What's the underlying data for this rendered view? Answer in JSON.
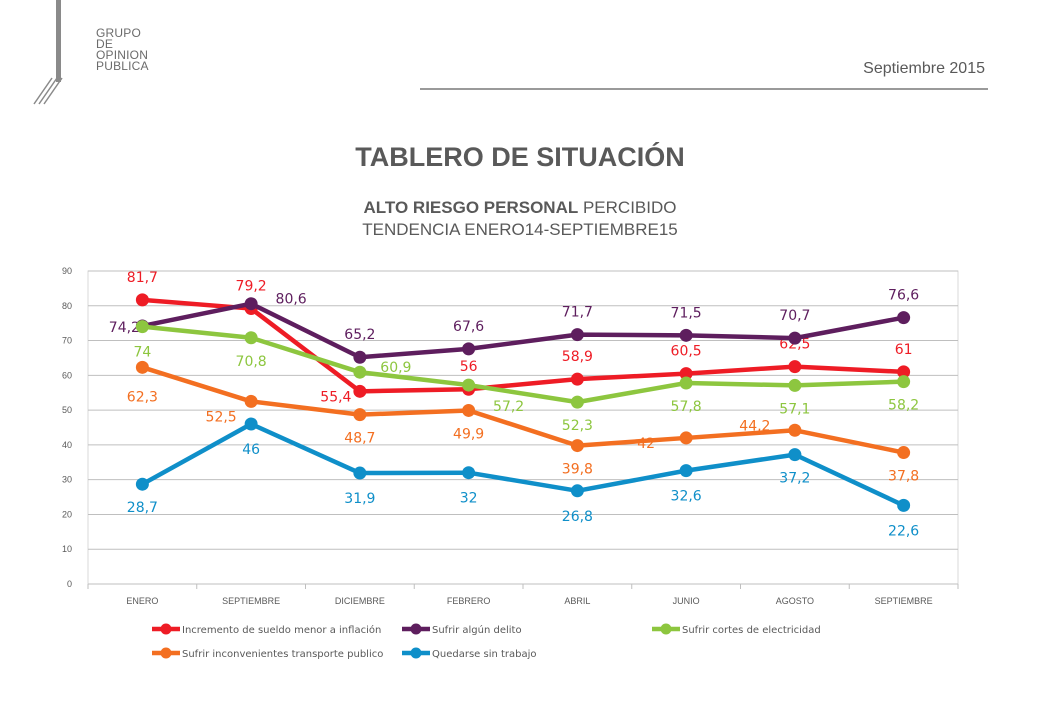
{
  "header": {
    "logo_lines": [
      "GRUPO",
      "DE",
      "OPINION",
      "PUBLICA"
    ],
    "date": "Septiembre 2015"
  },
  "titles": {
    "main": "TABLERO DE SITUACIÓN",
    "subtitle_bold": "ALTO RIESGO PERSONAL",
    "subtitle_rest": " PERCIBIDO",
    "subtitle2": "TENDENCIA ENERO14-SEPTIEMBRE15"
  },
  "chart_data": {
    "type": "line",
    "categories": [
      "ENERO",
      "SEPTIEMBRE",
      "DICIEMBRE",
      "FEBRERO",
      "ABRIL",
      "JUNIO",
      "AGOSTO",
      "SEPTIEMBRE"
    ],
    "ylim": [
      0,
      90
    ],
    "yticks": [
      0,
      10,
      20,
      30,
      40,
      50,
      60,
      70,
      80,
      90
    ],
    "grid": true,
    "legend_position": "bottom",
    "series": [
      {
        "name": "Incremento de sueldo menor a inflación",
        "color": "#ee1c25",
        "values": [
          81.7,
          79.2,
          55.4,
          56,
          58.9,
          60.5,
          62.5,
          61
        ],
        "labels": [
          "81,7",
          "79,2",
          "55,4",
          "56",
          "58,9",
          "60,5",
          "62,5",
          "61"
        ]
      },
      {
        "name": "Sufrir algún delito",
        "color": "#5e1e5e",
        "values": [
          74.2,
          80.6,
          65.2,
          67.6,
          71.7,
          71.5,
          70.7,
          76.6
        ],
        "labels": [
          "74,2",
          "80,6",
          "65,2",
          "67,6",
          "71,7",
          "71,5",
          "70,7",
          "76,6"
        ]
      },
      {
        "name": "Sufrir cortes de electricidad",
        "color": "#8dc63f",
        "values": [
          74,
          70.8,
          60.9,
          57.2,
          52.3,
          57.8,
          57.1,
          58.2
        ],
        "labels": [
          "74",
          "70,8",
          "60,9",
          "57,2",
          "52,3",
          "57,8",
          "57,1",
          "58,2"
        ]
      },
      {
        "name": "Sufrir inconvenientes transporte publico",
        "color": "#f36f21",
        "values": [
          62.3,
          52.5,
          48.7,
          49.9,
          39.8,
          42,
          44.2,
          37.8
        ],
        "labels": [
          "62,3",
          "52,5",
          "48,7",
          "49,9",
          "39,8",
          "42",
          "44,2",
          "37,8"
        ]
      },
      {
        "name": "Quedarse sin trabajo",
        "color": "#0f8fc9",
        "values": [
          28.7,
          46,
          31.9,
          32,
          26.8,
          32.6,
          37.2,
          22.6
        ],
        "labels": [
          "28,7",
          "46",
          "31,9",
          "32",
          "26,8",
          "32,6",
          "37,2",
          "22,6"
        ]
      }
    ]
  }
}
